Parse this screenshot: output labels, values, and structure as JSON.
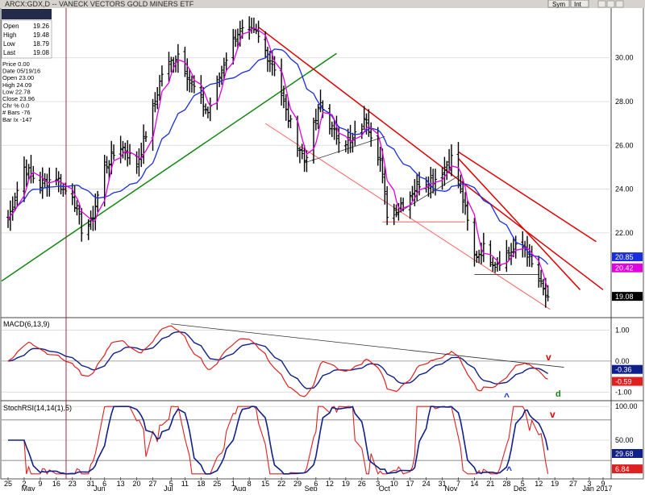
{
  "window": {
    "title": "ARCX:GDX,D -- VANECK VECTORS GOLD MINERS ETF",
    "buttons": [
      "Sym",
      "Int"
    ]
  },
  "ohlc_box": [
    {
      "label": "Open",
      "value": "19.26"
    },
    {
      "label": "High",
      "value": "19.48"
    },
    {
      "label": "Low",
      "value": "18.79"
    },
    {
      "label": "Last",
      "value": "19.08"
    }
  ],
  "cursor_info": [
    "Price   0.00",
    "Date   05/19/16",
    "Open   23.00",
    "High   24.09",
    "Low    22.78",
    "Close  23.96",
    "Chr %  0.0",
    "# Bars -76",
    "Bar Ix -147"
  ],
  "colors": {
    "price_bars": "#000000",
    "ma_fast": "#e000e0",
    "ma_slow": "#1a2ee0",
    "trend_red": "#dd0000",
    "channel_pink": "#ff6060",
    "trend_green": "#118811",
    "macd_line": "#e02020",
    "signal_line": "#10208a",
    "stoch_fast": "#e02020",
    "stoch_slow": "#10208a",
    "vline": "#a01030"
  },
  "chart_data": [
    {
      "type": "line",
      "panel": "price",
      "title": "ARCX:GDX,D -- VANECK VECTORS GOLD MINERS ETF",
      "ylim": [
        18.2,
        32.2
      ],
      "ticks": [
        "22.00",
        "24.00",
        "26.00",
        "28.00",
        "30.00"
      ],
      "tick_values": [
        22,
        24,
        26,
        28,
        30
      ],
      "x_day_labels": [
        "25",
        "2",
        "9",
        "16",
        "23",
        "31",
        "6",
        "13",
        "20",
        "27",
        "5",
        "11",
        "18",
        "25",
        "1",
        "8",
        "15",
        "22",
        "29",
        "6",
        "12",
        "19",
        "26",
        "3",
        "10",
        "17",
        "24",
        "31",
        "7",
        "14",
        "21",
        "28",
        "5",
        "12",
        "19",
        "27",
        "3",
        "9"
      ],
      "x_month_labels": [
        "May",
        "Jun",
        "Jul",
        "Aug",
        "Sep",
        "Oct",
        "Nov",
        "Dec",
        "Jan 2017"
      ],
      "keypoints": [
        {
          "date": "2016-04-25",
          "close": 22.6
        },
        {
          "date": "2016-05-02",
          "close": 25.0
        },
        {
          "date": "2016-05-09",
          "close": 24.2
        },
        {
          "date": "2016-05-16",
          "close": 24.6
        },
        {
          "date": "2016-05-19",
          "close": 23.96
        },
        {
          "date": "2016-05-23",
          "close": 23.8
        },
        {
          "date": "2016-05-27",
          "close": 22.2
        },
        {
          "date": "2016-05-31",
          "close": 22.4
        },
        {
          "date": "2016-06-06",
          "close": 25.0
        },
        {
          "date": "2016-06-13",
          "close": 26.0
        },
        {
          "date": "2016-06-20",
          "close": 25.1
        },
        {
          "date": "2016-06-27",
          "close": 27.6
        },
        {
          "date": "2016-07-01",
          "close": 29.3
        },
        {
          "date": "2016-07-08",
          "close": 30.2
        },
        {
          "date": "2016-07-14",
          "close": 28.8
        },
        {
          "date": "2016-07-21",
          "close": 27.5
        },
        {
          "date": "2016-07-28",
          "close": 29.8
        },
        {
          "date": "2016-08-03",
          "close": 31.2
        },
        {
          "date": "2016-08-11",
          "close": 31.1
        },
        {
          "date": "2016-08-15",
          "close": 30.3
        },
        {
          "date": "2016-08-19",
          "close": 29.6
        },
        {
          "date": "2016-08-24",
          "close": 27.5
        },
        {
          "date": "2016-09-01",
          "close": 25.3
        },
        {
          "date": "2016-09-08",
          "close": 27.9
        },
        {
          "date": "2016-09-14",
          "close": 26.5
        },
        {
          "date": "2016-09-21",
          "close": 26.1
        },
        {
          "date": "2016-09-28",
          "close": 27.2
        },
        {
          "date": "2016-10-04",
          "close": 25.3
        },
        {
          "date": "2016-10-07",
          "close": 22.9
        },
        {
          "date": "2016-10-14",
          "close": 23.4
        },
        {
          "date": "2016-10-21",
          "close": 24.3
        },
        {
          "date": "2016-10-28",
          "close": 24.5
        },
        {
          "date": "2016-11-04",
          "close": 25.4
        },
        {
          "date": "2016-11-09",
          "close": 23.5
        },
        {
          "date": "2016-11-14",
          "close": 20.9
        },
        {
          "date": "2016-11-18",
          "close": 21.3
        },
        {
          "date": "2016-11-23",
          "close": 20.6
        },
        {
          "date": "2016-11-30",
          "close": 21.2
        },
        {
          "date": "2016-12-06",
          "close": 21.4
        },
        {
          "date": "2016-12-09",
          "close": 20.5
        },
        {
          "date": "2016-12-12",
          "close": 19.8
        },
        {
          "date": "2016-12-15",
          "close": 19.1
        },
        {
          "date": "2016-12-16",
          "close": 19.08
        }
      ],
      "last_labels": [
        {
          "text": "20.85",
          "value": 20.85,
          "color": "#1a2ee0"
        },
        {
          "text": "20.42",
          "value": 20.42,
          "color": "#e000e0"
        },
        {
          "text": "19.08",
          "value": 19.08,
          "color": "#000000"
        }
      ]
    },
    {
      "type": "line",
      "panel": "macd",
      "title": "MACD(6,13,9)",
      "ylim": [
        -1.2,
        1.35
      ],
      "ticks": [
        "1.00",
        "0.00",
        "-1.00"
      ],
      "tick_values": [
        1.0,
        0.0,
        -1.0
      ],
      "last_labels": [
        {
          "text": "-0.36",
          "value": -0.36,
          "color": "#10208a"
        },
        {
          "text": "-0.59",
          "value": -0.59,
          "color": "#e02020"
        }
      ]
    },
    {
      "type": "line",
      "panel": "stoch",
      "title": "StochRSI(14,14(1),5)",
      "ylim": [
        -5,
        105
      ],
      "ticks": [
        "100.00",
        "50.00"
      ],
      "tick_values": [
        100,
        50
      ],
      "last_labels": [
        {
          "text": "29.68",
          "value": 29.68,
          "color": "#10208a"
        },
        {
          "text": "6.84",
          "value": 6.84,
          "color": "#e02020"
        }
      ]
    }
  ],
  "annotations": {
    "macd_v": "v",
    "macd_caret": "^",
    "macd_d": "d",
    "stoch_v": "v",
    "stoch_caret": "^"
  }
}
